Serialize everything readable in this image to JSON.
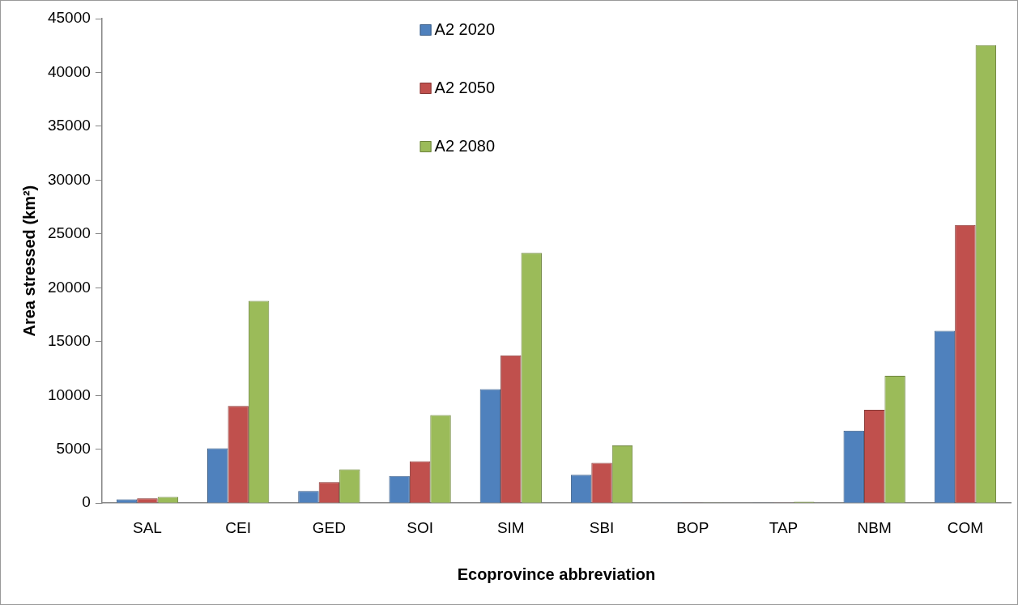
{
  "chart_data": {
    "type": "bar",
    "xlabel": "Ecoprovince abbreviation",
    "ylabel": "Area stressed (km²)",
    "categories": [
      "SAL",
      "CEI",
      "GED",
      "SOI",
      "SIM",
      "SBI",
      "BOP",
      "TAP",
      "NBM",
      "COM"
    ],
    "series": [
      {
        "name": "A2 2020",
        "color": "#4f81bd",
        "values": [
          350,
          5100,
          1120,
          2510,
          10590,
          2630,
          60,
          20,
          6720,
          16000
        ]
      },
      {
        "name": "A2 2050",
        "color": "#c0504d",
        "values": [
          450,
          9020,
          1950,
          3880,
          13730,
          3730,
          20,
          60,
          8670,
          25830
        ]
      },
      {
        "name": "A2 2080",
        "color": "#9bbb59",
        "values": [
          580,
          18790,
          3140,
          8170,
          23250,
          5360,
          60,
          120,
          11830,
          42540
        ]
      }
    ],
    "ylim": [
      0,
      45000
    ],
    "yticks": [
      0,
      5000,
      10000,
      15000,
      20000,
      25000,
      30000,
      35000,
      40000,
      45000
    ],
    "grid": false,
    "legend": "top"
  }
}
